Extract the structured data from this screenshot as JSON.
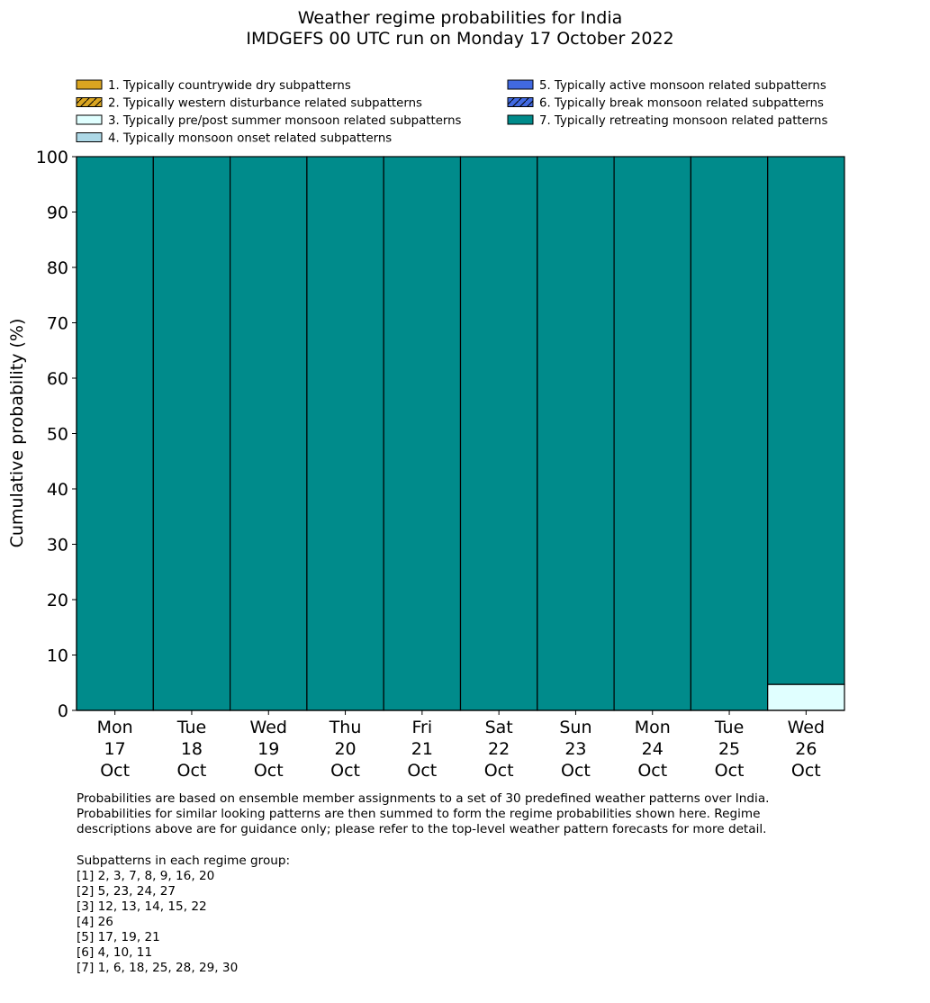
{
  "chart_data": {
    "type": "bar",
    "stacked": true,
    "title": "Weather regime probabilities for India",
    "subtitle": "IMDGEFS 00 UTC run on Monday 17 October 2022",
    "ylabel": "Cumulative probability (%)",
    "xlabel": "",
    "ylim": [
      0,
      100
    ],
    "yticks": [
      0,
      10,
      20,
      30,
      40,
      50,
      60,
      70,
      80,
      90,
      100
    ],
    "grid": false,
    "legend_placement": "top",
    "categories": [
      "Mon\n17\nOct",
      "Tue\n18\nOct",
      "Wed\n19\nOct",
      "Thu\n20\nOct",
      "Fri\n21\nOct",
      "Sat\n22\nOct",
      "Sun\n23\nOct",
      "Mon\n24\nOct",
      "Tue\n25\nOct",
      "Wed\n26\nOct"
    ],
    "series": [
      {
        "name": "1. Typically countrywide dry subpatterns",
        "color": "#DAA520",
        "hatch": false,
        "values": [
          0,
          0,
          0,
          0,
          0,
          0,
          0,
          0,
          0,
          0
        ]
      },
      {
        "name": "2. Typically western disturbance related subpatterns",
        "color": "#DAA520",
        "hatch": true,
        "values": [
          0,
          0,
          0,
          0,
          0,
          0,
          0,
          0,
          0,
          0
        ]
      },
      {
        "name": "3. Typically pre/post summer monsoon related subpatterns",
        "color": "#E0FFFF",
        "hatch": false,
        "values": [
          0,
          0,
          0,
          0,
          0,
          0,
          0,
          0,
          0,
          4.7
        ]
      },
      {
        "name": "4. Typically monsoon onset related subpatterns",
        "color": "#ADD8E6",
        "hatch": false,
        "values": [
          0,
          0,
          0,
          0,
          0,
          0,
          0,
          0,
          0,
          0
        ]
      },
      {
        "name": "5. Typically active monsoon related subpatterns",
        "color": "#4169E1",
        "hatch": false,
        "values": [
          0,
          0,
          0,
          0,
          0,
          0,
          0,
          0,
          0,
          0
        ]
      },
      {
        "name": "6. Typically break monsoon related subpatterns",
        "color": "#4169E1",
        "hatch": true,
        "values": [
          0,
          0,
          0,
          0,
          0,
          0,
          0,
          0,
          0,
          0
        ]
      },
      {
        "name": "7. Typically retreating monsoon related patterns",
        "color": "#008B8B",
        "hatch": false,
        "values": [
          100,
          100,
          100,
          100,
          100,
          100,
          100,
          100,
          100,
          95.3
        ]
      }
    ]
  },
  "notes": {
    "description": "Probabilities are based on ensemble member assignments to a set of 30 predefined weather patterns over India.\nProbabilities for similar looking patterns are then summed to form the regime probabilities shown here. Regime\ndescriptions above are for guidance only; please refer to the top-level weather pattern forecasts for more detail.",
    "groups_heading": "Subpatterns in each regime group:",
    "groups": [
      "[1] 2, 3, 7, 8, 9, 16, 20",
      "[2] 5, 23, 24, 27",
      "[3] 12, 13, 14, 15, 22",
      "[4] 26",
      "[5] 17, 19, 21",
      "[6] 4, 10, 11",
      "[7] 1, 6, 18, 25, 28, 29, 30"
    ]
  }
}
